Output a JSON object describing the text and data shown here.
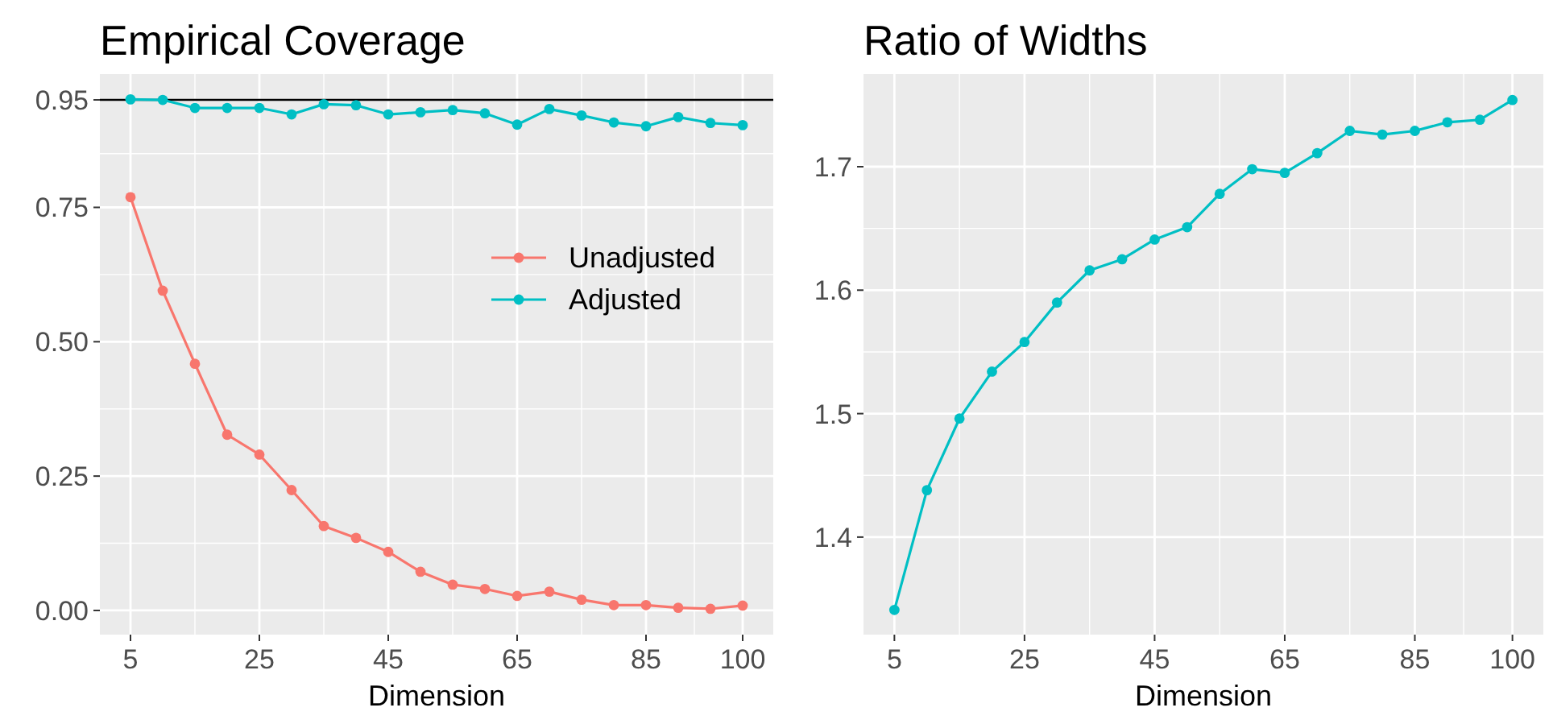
{
  "chart_data": [
    {
      "type": "line",
      "title": "Empirical Coverage",
      "xlabel": "Dimension",
      "x": [
        5,
        10,
        15,
        20,
        25,
        30,
        35,
        40,
        45,
        50,
        55,
        60,
        65,
        70,
        75,
        80,
        85,
        90,
        95,
        100
      ],
      "series": [
        {
          "name": "Unadjusted",
          "color": "#f8766d",
          "values": [
            0.769,
            0.595,
            0.459,
            0.327,
            0.29,
            0.224,
            0.157,
            0.135,
            0.109,
            0.072,
            0.048,
            0.04,
            0.027,
            0.035,
            0.02,
            0.01,
            0.01,
            0.005,
            0.003,
            0.009
          ]
        },
        {
          "name": "Adjusted",
          "color": "#00bfc4",
          "values": [
            0.951,
            0.95,
            0.935,
            0.935,
            0.935,
            0.923,
            0.942,
            0.94,
            0.923,
            0.927,
            0.931,
            0.925,
            0.904,
            0.933,
            0.921,
            0.908,
            0.901,
            0.918,
            0.907,
            0.903
          ]
        }
      ],
      "xlim": [
        0.25,
        104.75
      ],
      "xticks": [
        5,
        25,
        45,
        65,
        85,
        100
      ],
      "ylim": [
        -0.045,
        0.998
      ],
      "yticks": [
        {
          "value": 0,
          "label": "0.00"
        },
        0.25,
        {
          "value": 0.5,
          "label": "0.50"
        },
        0.75,
        0.95
      ],
      "ref_lines": [
        {
          "axis": "y",
          "value": 0.95,
          "color": "#000000"
        }
      ],
      "grid": true,
      "legend": "right",
      "marker": "circle"
    },
    {
      "type": "line",
      "title": "Ratio of Widths",
      "xlabel": "Dimension",
      "x": [
        5,
        10,
        15,
        20,
        25,
        30,
        35,
        40,
        45,
        50,
        55,
        60,
        65,
        70,
        75,
        80,
        85,
        90,
        95,
        100
      ],
      "series": [
        {
          "color": "#00bfc4",
          "values": [
            1.341,
            1.438,
            1.496,
            1.534,
            1.558,
            1.59,
            1.616,
            1.625,
            1.641,
            1.651,
            1.678,
            1.698,
            1.695,
            1.711,
            1.729,
            1.726,
            1.729,
            1.736,
            1.738,
            1.754
          ]
        }
      ],
      "xlim": [
        0.25,
        104.75
      ],
      "xticks": [
        5,
        25,
        45,
        65,
        85,
        100
      ],
      "ylim": [
        1.321,
        1.775
      ],
      "yticks": [
        1.4,
        1.5,
        1.6,
        1.7
      ],
      "grid": true,
      "legend": false,
      "marker": "circle"
    }
  ]
}
